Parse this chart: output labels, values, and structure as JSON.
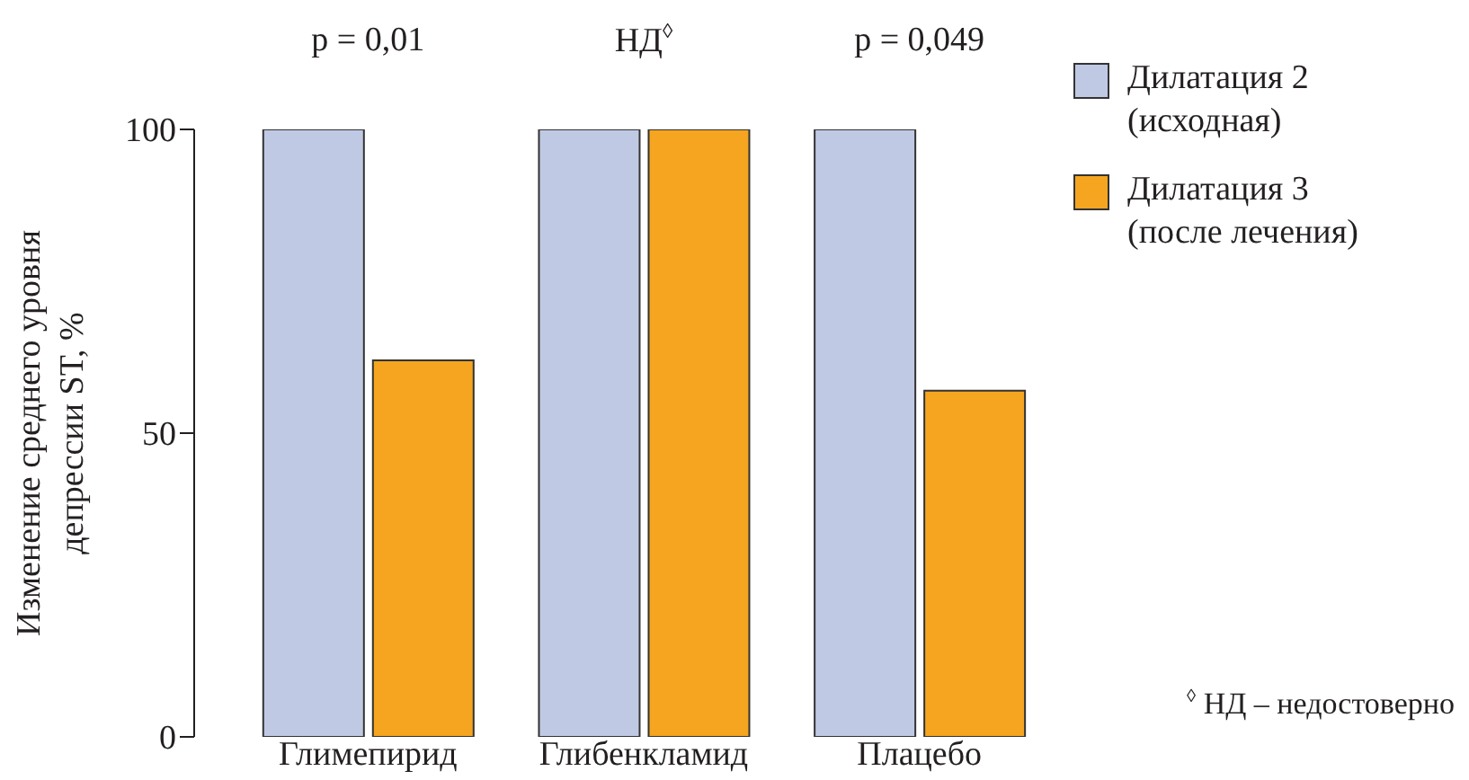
{
  "chart_data": {
    "type": "bar",
    "categories": [
      "Глимепирид",
      "Глибенкламид",
      "Плацебо"
    ],
    "series": [
      {
        "name": "Дилатация 2 (исходная)",
        "color": "#c0c9e4",
        "values": [
          100,
          100,
          100
        ]
      },
      {
        "name": "Дилатация 3 (после лечения)",
        "color": "#f5a51f",
        "values": [
          62,
          100,
          57
        ]
      }
    ],
    "ylabel": "Изменение среднего уровня депрессии ST, %",
    "ylim": [
      0,
      100
    ],
    "yticks": [
      0,
      50,
      100
    ],
    "grid": false,
    "legend": "top right",
    "annotations": [
      "p = 0,01",
      "НД$^{◊}$",
      "p = 0,049",
      "$^{◊}$ НД – недостоверно"
    ]
  }
}
